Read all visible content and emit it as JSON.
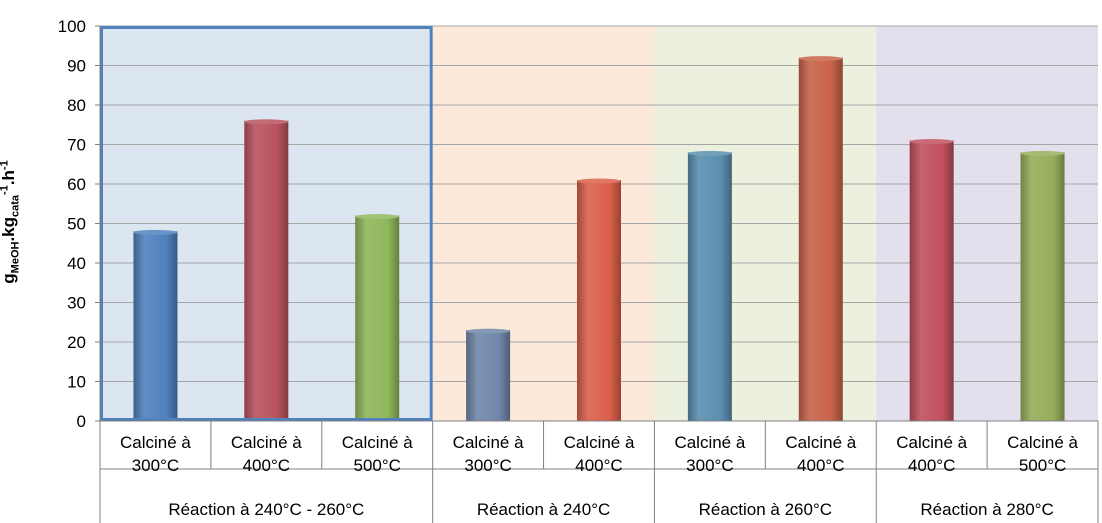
{
  "chart_data": {
    "type": "bar",
    "ylabel": {
      "g": "g",
      "sub1": "MeOH",
      "mid": ".kg",
      "sub2": "cata",
      "sup1": "-1",
      "dot": ".h",
      "sup2": "-1"
    },
    "ylim": [
      0,
      100
    ],
    "yticks": [
      "0",
      "10",
      "20",
      "30",
      "40",
      "50",
      "60",
      "70",
      "80",
      "90",
      "100"
    ],
    "grid": true,
    "groups": [
      {
        "label": "Réaction à 240°C - 260°C",
        "background": "#dce6f1",
        "highlighted": true,
        "border_color": "#4f81bd",
        "bars": [
          {
            "line1": "Calciné à",
            "line2": "300°C",
            "value": 48,
            "color": "#4f81bd"
          },
          {
            "line1": "Calciné à",
            "line2": "400°C",
            "value": 76,
            "color": "#b9525e"
          },
          {
            "line1": "Calciné à",
            "line2": "500°C",
            "value": 52,
            "color": "#8eb75b"
          }
        ]
      },
      {
        "label": "Réaction à 240°C",
        "background": "#fde9d9",
        "bars": [
          {
            "line1": "Calciné à",
            "line2": "300°C",
            "value": 23,
            "color": "#7087a9"
          },
          {
            "line1": "Calciné à",
            "line2": "400°C",
            "value": 61,
            "color": "#d9604a"
          }
        ]
      },
      {
        "label": "Réaction à 260°C",
        "background": "#ebf1de",
        "bars": [
          {
            "line1": "Calciné à",
            "line2": "300°C",
            "value": 68,
            "color": "#5b8fb0"
          },
          {
            "line1": "Calciné à",
            "line2": "400°C",
            "value": 92,
            "color": "#c8634a"
          }
        ]
      },
      {
        "label": "Réaction à 280°C",
        "background": "#e4dfec",
        "bars": [
          {
            "line1": "Calciné à",
            "line2": "400°C",
            "value": 71,
            "color": "#c0505f"
          },
          {
            "line1": "Calciné à",
            "line2": "500°C",
            "value": 68,
            "color": "#97ad5a"
          }
        ]
      }
    ]
  }
}
